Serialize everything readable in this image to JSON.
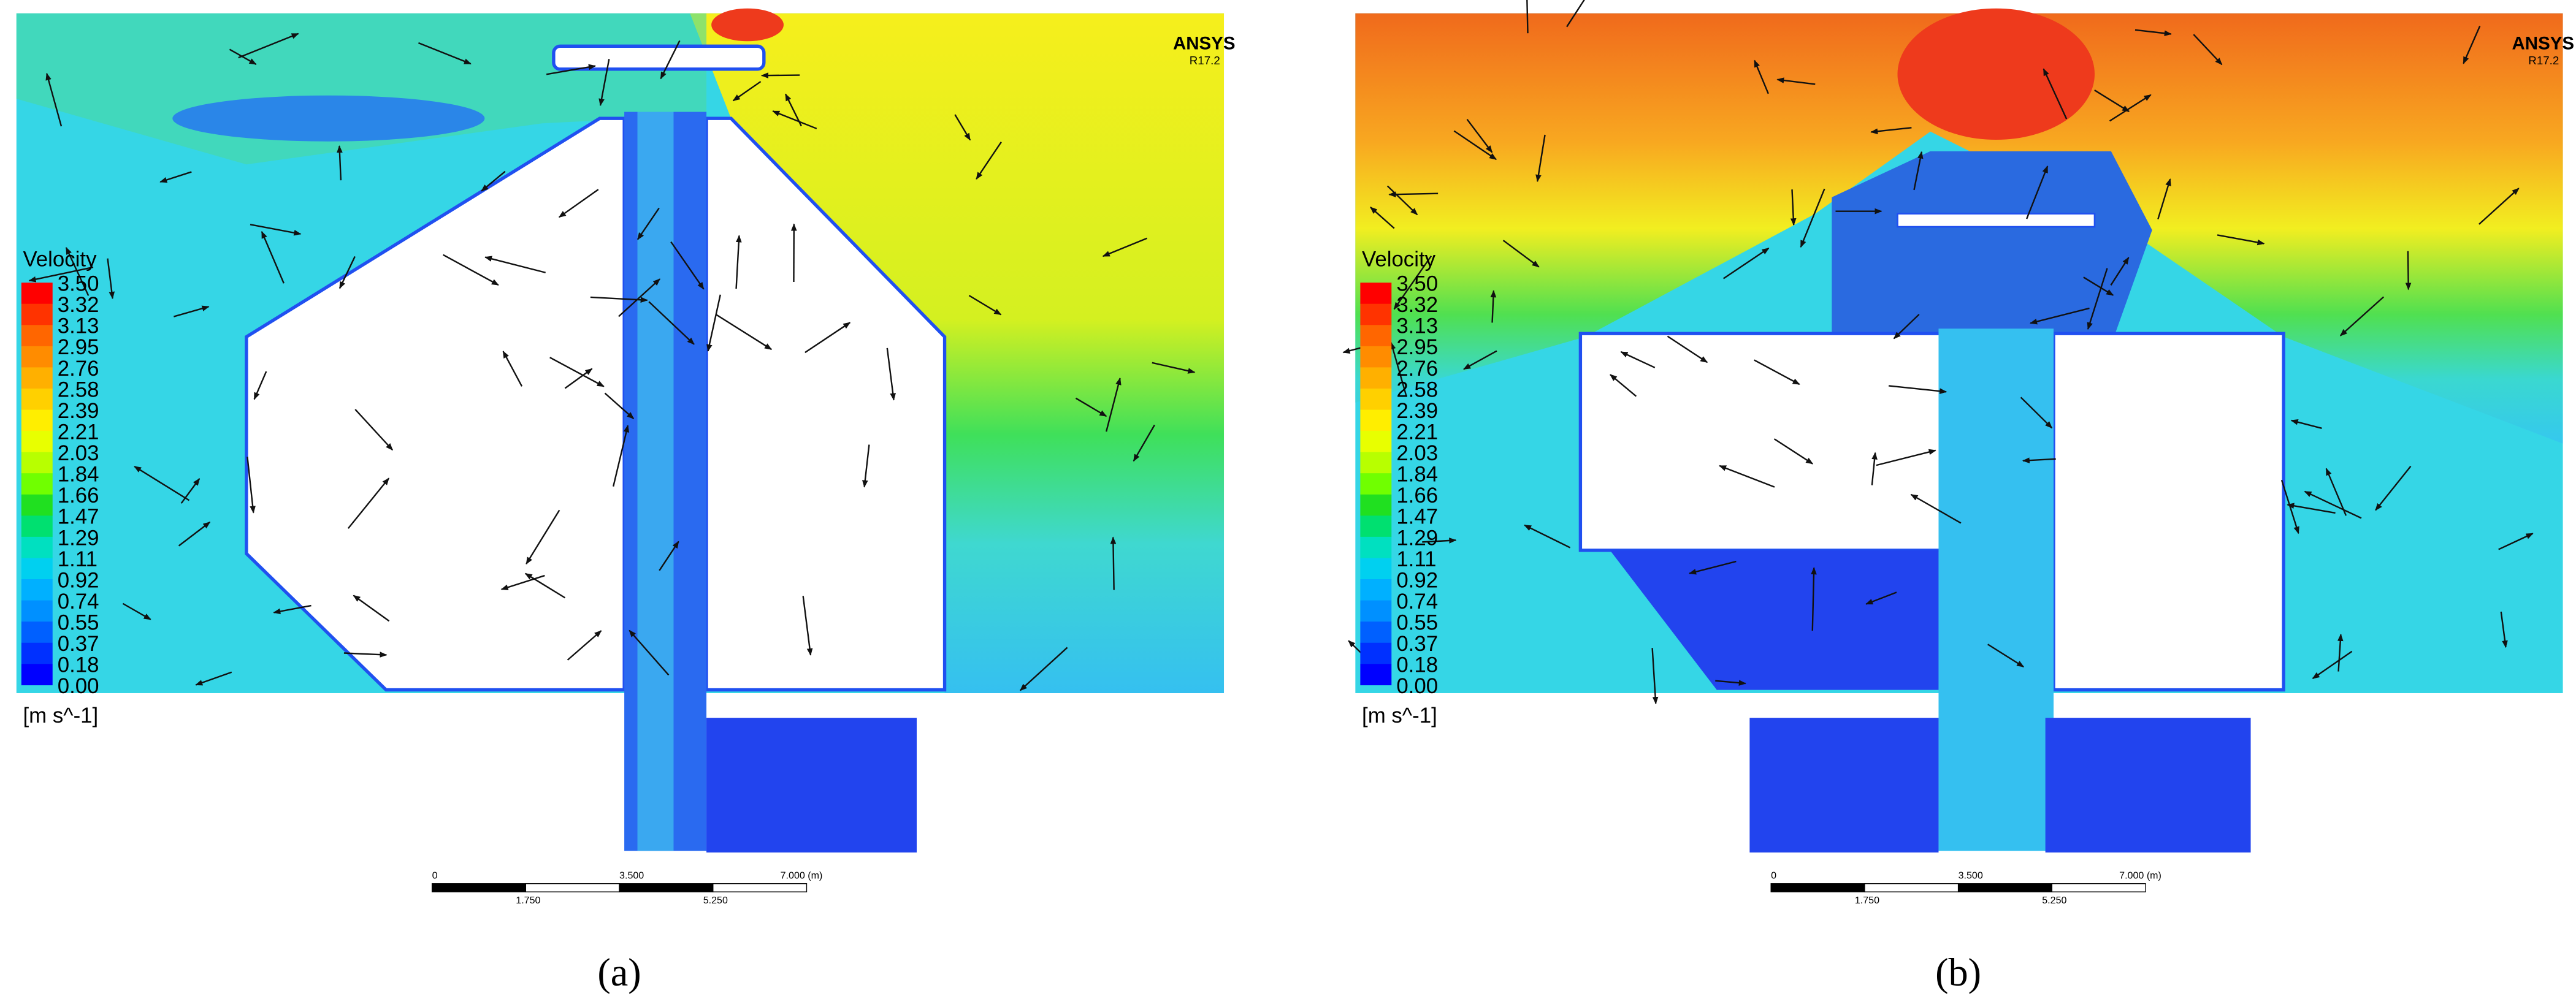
{
  "panels": [
    {
      "label": "(a)",
      "logo": "ANSYS",
      "version": "R17.2",
      "legend": {
        "title": "Velocity",
        "ticks": [
          "3.50",
          "3.32",
          "3.13",
          "2.95",
          "2.76",
          "2.58",
          "2.39",
          "2.21",
          "2.03",
          "1.84",
          "1.66",
          "1.47",
          "1.29",
          "1.11",
          "0.92",
          "0.74",
          "0.55",
          "0.37",
          "0.18",
          "0.00"
        ],
        "unit": "[m s^-1]"
      },
      "scale_bar": {
        "top_labels": [
          "0",
          "3.500",
          "7.000 (m)"
        ],
        "bottom_labels": [
          "1.750",
          "5.250"
        ]
      }
    },
    {
      "label": "(b)",
      "logo": "ANSYS",
      "version": "R17.2",
      "legend": {
        "title": "Velocity",
        "ticks": [
          "3.50",
          "3.32",
          "3.13",
          "2.95",
          "2.76",
          "2.58",
          "2.39",
          "2.21",
          "2.03",
          "1.84",
          "1.66",
          "1.47",
          "1.29",
          "1.11",
          "0.92",
          "0.74",
          "0.55",
          "0.37",
          "0.18",
          "0.00"
        ],
        "unit": "[m s^-1]"
      },
      "scale_bar": {
        "top_labels": [
          "0",
          "3.500",
          "7.000 (m)"
        ],
        "bottom_labels": [
          "1.750",
          "5.250"
        ]
      }
    }
  ]
}
